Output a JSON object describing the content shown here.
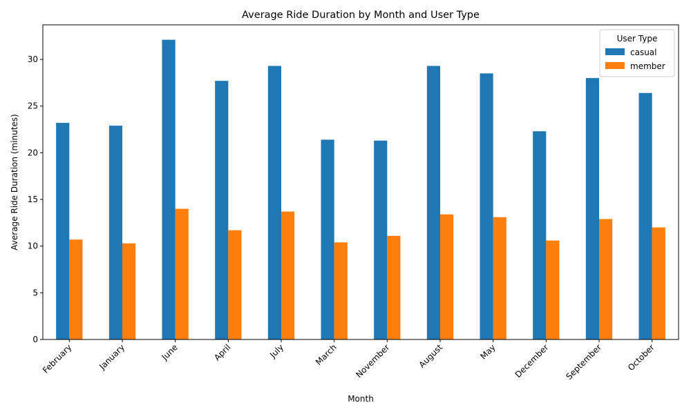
{
  "chart_data": {
    "type": "bar",
    "title": "Average Ride Duration by Month and User Type",
    "xlabel": "Month",
    "ylabel": "Average Ride Duration (minutes)",
    "categories": [
      "February",
      "January",
      "June",
      "April",
      "July",
      "March",
      "November",
      "August",
      "May",
      "December",
      "September",
      "October"
    ],
    "series": [
      {
        "name": "casual",
        "color": "#1f77b4",
        "values": [
          23.2,
          22.9,
          32.1,
          27.7,
          29.3,
          21.4,
          21.3,
          29.3,
          28.5,
          22.3,
          28.0,
          26.4
        ]
      },
      {
        "name": "member",
        "color": "#ff7f0e",
        "values": [
          10.7,
          10.3,
          14.0,
          11.7,
          13.7,
          10.4,
          11.1,
          13.4,
          13.1,
          10.6,
          12.9,
          12.0
        ]
      }
    ],
    "ylim": [
      0,
      33.7
    ],
    "yticks": [
      0,
      5,
      10,
      15,
      20,
      25,
      30
    ],
    "legend": {
      "title": "User Type",
      "placement": "top-right"
    },
    "grid": false
  }
}
